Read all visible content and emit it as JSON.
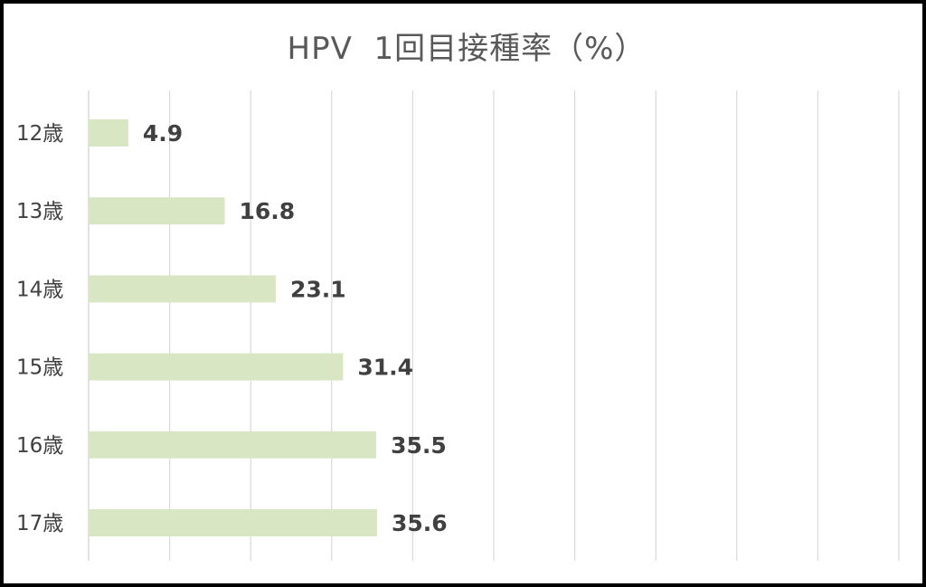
{
  "chart_data": {
    "type": "bar",
    "orientation": "horizontal",
    "title": "HPV  1回目接種率（%）",
    "categories": [
      "12歳",
      "13歳",
      "14歳",
      "15歳",
      "16歳",
      "17歳"
    ],
    "values": [
      4.9,
      16.8,
      23.1,
      31.4,
      35.5,
      35.6
    ],
    "value_labels": [
      "4.9",
      "16.8",
      "23.1",
      "31.4",
      "35.5",
      "35.6"
    ],
    "xlim": [
      0,
      100
    ],
    "grid": true,
    "bar_color": "#d9e6c3",
    "grid_color": "#d9d9d9"
  }
}
